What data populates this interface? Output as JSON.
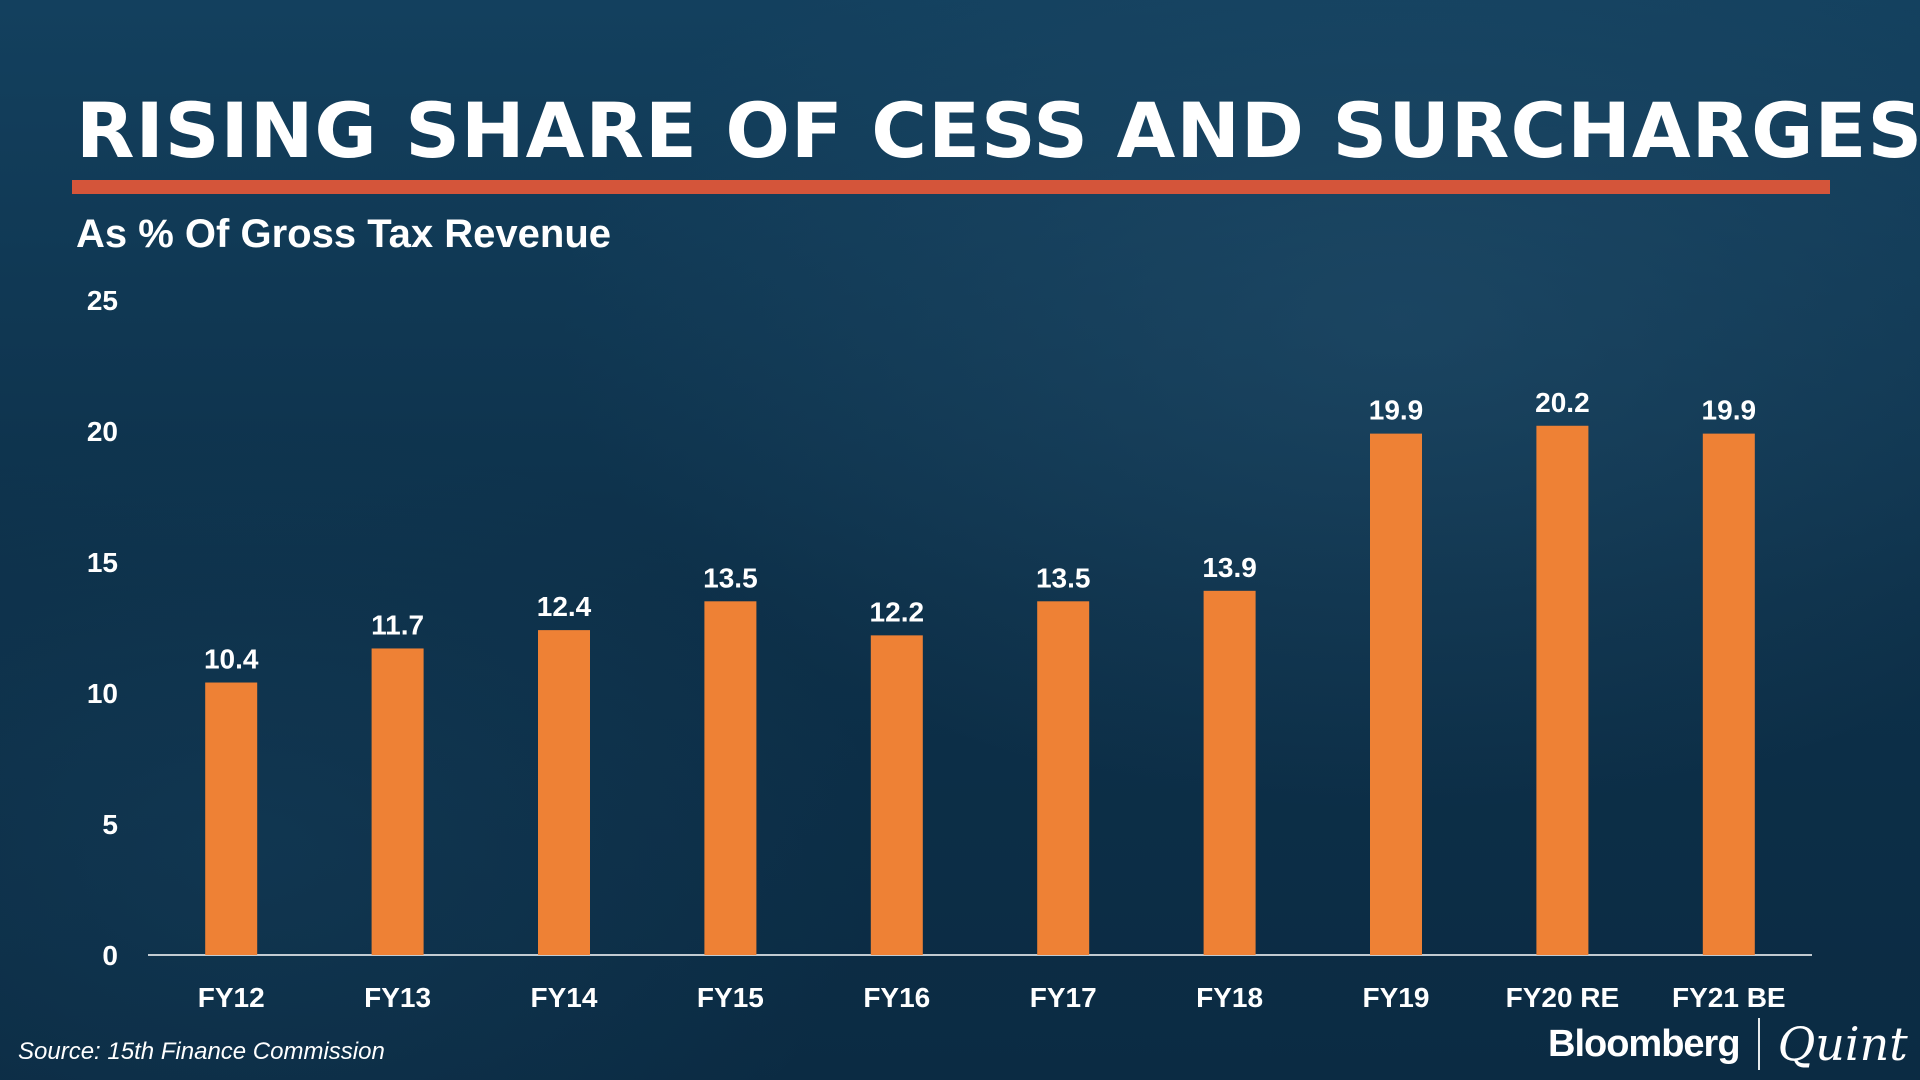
{
  "header": {
    "title": "RISING SHARE OF CESS AND SURCHARGES",
    "subtitle": "As % Of Gross Tax Revenue"
  },
  "footer": {
    "source": "Source: 15th Finance Commission",
    "logo_primary": "Bloomberg",
    "logo_secondary": "Quint"
  },
  "colors": {
    "background": "#0f3550",
    "bar": "#ee8135",
    "accent_rule": "#d4553a",
    "text": "#ffffff"
  },
  "chart_data": {
    "type": "bar",
    "title": "RISING SHARE OF CESS AND SURCHARGES",
    "subtitle": "As % Of Gross Tax Revenue",
    "xlabel": "",
    "ylabel": "",
    "categories": [
      "FY12",
      "FY13",
      "FY14",
      "FY15",
      "FY16",
      "FY17",
      "FY18",
      "FY19",
      "FY20 RE",
      "FY21 BE"
    ],
    "values": [
      10.4,
      11.7,
      12.4,
      13.5,
      12.2,
      13.5,
      13.9,
      19.9,
      20.2,
      19.9
    ],
    "value_labels": [
      "10.4",
      "11.7",
      "12.4",
      "13.5",
      "12.2",
      "13.5",
      "13.9",
      "19.9",
      "20.2",
      "19.9"
    ],
    "ylim": [
      0,
      25
    ],
    "yticks": [
      0,
      5,
      10,
      15,
      20,
      25
    ],
    "ytick_labels": [
      "0",
      "5",
      "10",
      "15",
      "20",
      "25"
    ],
    "grid": false,
    "legend": "none"
  }
}
